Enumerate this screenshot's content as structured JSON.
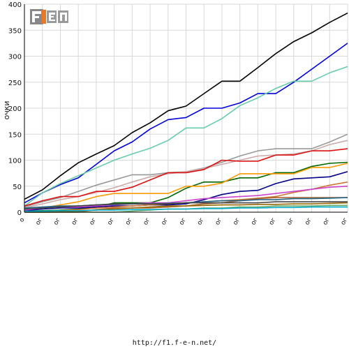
{
  "chart_data": {
    "type": "line",
    "title": "",
    "xlabel": "",
    "ylabel": "очки",
    "ylim": [
      0,
      400
    ],
    "yticks": [
      0,
      50,
      100,
      150,
      200,
      250,
      300,
      350,
      400
    ],
    "x_tick_labels": [
      "о",
      "ог",
      "ог",
      "ог",
      "ог",
      "ог",
      "ог",
      "ог",
      "ог",
      "ог",
      "ог",
      "ог",
      "ог",
      "ог",
      "ог",
      "ог",
      "ог",
      "ог",
      "ог",
      "ог"
    ],
    "grid": true,
    "legend": "none",
    "x": [
      0,
      1,
      2,
      3,
      4,
      5,
      6,
      7,
      8,
      9,
      10,
      11,
      12,
      13,
      14,
      15,
      16,
      17,
      18
    ],
    "series": [
      {
        "color": "#000000",
        "values": [
          25,
          43,
          70,
          95,
          112,
          128,
          153,
          172,
          195,
          204,
          228,
          252,
          252,
          278,
          305,
          328,
          345,
          365,
          383
        ]
      },
      {
        "color": "#0000dd",
        "values": [
          18,
          37,
          53,
          66,
          92,
          118,
          135,
          160,
          178,
          182,
          200,
          200,
          210,
          228,
          228,
          250,
          275,
          300,
          325
        ]
      },
      {
        "color": "#66ccaa",
        "values": [
          12,
          37,
          55,
          70,
          85,
          100,
          112,
          123,
          138,
          162,
          162,
          180,
          205,
          220,
          238,
          252,
          252,
          268,
          280
        ]
      },
      {
        "color": "#999999",
        "values": [
          10,
          20,
          28,
          40,
          52,
          62,
          72,
          72,
          76,
          78,
          85,
          96,
          108,
          118,
          122,
          122,
          122,
          135,
          150
        ]
      },
      {
        "color": "#ccaaaa",
        "values": [
          8,
          16,
          24,
          30,
          38,
          47,
          58,
          68,
          74,
          78,
          84,
          92,
          100,
          108,
          110,
          112,
          118,
          130,
          138
        ]
      },
      {
        "color": "#dd1111",
        "values": [
          12,
          22,
          30,
          30,
          40,
          40,
          48,
          62,
          76,
          76,
          82,
          100,
          98,
          98,
          110,
          110,
          118,
          118,
          122
        ]
      },
      {
        "color": "#006600",
        "values": [
          2,
          3,
          4,
          6,
          10,
          18,
          18,
          18,
          28,
          46,
          58,
          58,
          66,
          66,
          76,
          76,
          88,
          94,
          96
        ]
      },
      {
        "color": "#ff9900",
        "values": [
          4,
          8,
          14,
          20,
          30,
          36,
          36,
          36,
          36,
          50,
          50,
          56,
          74,
          74,
          74,
          74,
          86,
          86,
          94
        ]
      },
      {
        "color": "#000088",
        "values": [
          3,
          6,
          8,
          8,
          10,
          12,
          12,
          14,
          14,
          16,
          24,
          34,
          40,
          42,
          55,
          64,
          66,
          68,
          78
        ]
      },
      {
        "color": "#cc7733",
        "values": [
          1,
          2,
          3,
          5,
          8,
          10,
          12,
          14,
          16,
          18,
          20,
          22,
          24,
          27,
          30,
          38,
          44,
          52,
          58
        ]
      },
      {
        "color": "#cc44cc",
        "values": [
          4,
          8,
          10,
          10,
          12,
          14,
          16,
          18,
          18,
          22,
          26,
          28,
          30,
          32,
          36,
          40,
          44,
          48,
          50
        ]
      },
      {
        "color": "#aa6633",
        "values": [
          0,
          0,
          0,
          0,
          5,
          8,
          8,
          8,
          10,
          12,
          16,
          18,
          22,
          26,
          28,
          28,
          28,
          28,
          28
        ]
      },
      {
        "color": "#226688",
        "values": [
          8,
          10,
          12,
          12,
          14,
          15,
          16,
          16,
          17,
          18,
          20,
          22,
          22,
          24,
          24,
          26,
          26,
          27,
          28
        ]
      },
      {
        "color": "#996600",
        "values": [
          0,
          0,
          1,
          2,
          4,
          6,
          8,
          10,
          12,
          12,
          13,
          14,
          14,
          15,
          15,
          16,
          16,
          17,
          18
        ]
      },
      {
        "color": "#66aa66",
        "values": [
          0,
          0,
          0,
          0,
          0,
          0,
          2,
          4,
          6,
          6,
          8,
          8,
          10,
          10,
          12,
          12,
          12,
          13,
          13
        ]
      },
      {
        "color": "#00aacc",
        "values": [
          2,
          2,
          3,
          3,
          4,
          4,
          5,
          5,
          6,
          6,
          7,
          7,
          8,
          8,
          9,
          9,
          10,
          10,
          10
        ]
      },
      {
        "color": "#444444",
        "values": [
          6,
          8,
          10,
          12,
          14,
          16,
          16,
          16,
          16,
          18,
          18,
          18,
          18,
          18,
          20,
          20,
          20,
          20,
          20
        ]
      }
    ]
  },
  "footer": {
    "url": "http://f1.f-e-n.net/"
  },
  "logo": {
    "text": "F1EN"
  }
}
